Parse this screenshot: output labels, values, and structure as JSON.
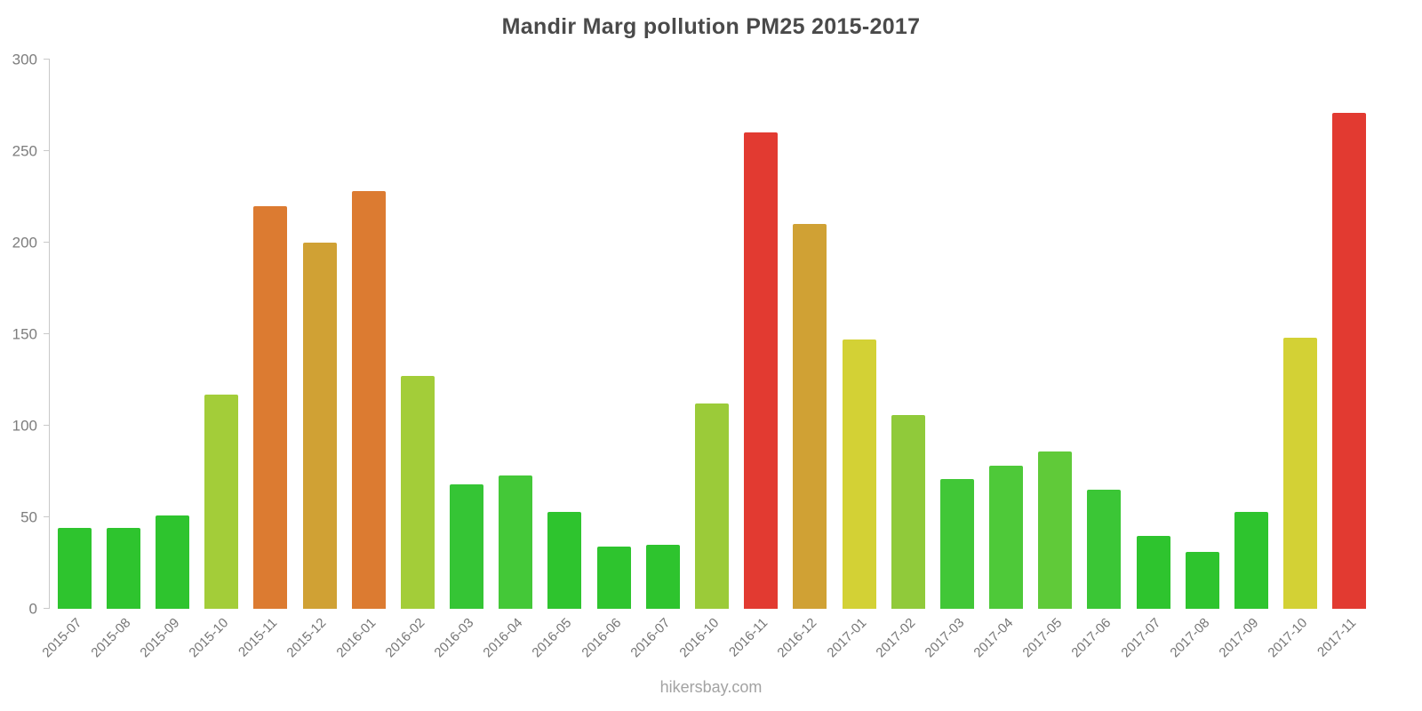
{
  "title": "Mandir Marg pollution PM25 2015-2017",
  "footer": "hikersbay.com",
  "chart_data": {
    "type": "bar",
    "title": "Mandir Marg pollution PM25 2015-2017",
    "xlabel": "",
    "ylabel": "",
    "ylim": [
      0,
      300
    ],
    "yticks": [
      0,
      50,
      100,
      150,
      200,
      250,
      300
    ],
    "grid": false,
    "legend": "none",
    "categories": [
      "2015-07",
      "2015-08",
      "2015-09",
      "2015-10",
      "2015-11",
      "2015-12",
      "2016-01",
      "2016-02",
      "2016-03",
      "2016-04",
      "2016-05",
      "2016-06",
      "2016-07",
      "2016-10",
      "2016-11",
      "2016-12",
      "2017-01",
      "2017-02",
      "2017-03",
      "2017-04",
      "2017-05",
      "2017-06",
      "2017-07",
      "2017-08",
      "2017-09",
      "2017-10",
      "2017-11"
    ],
    "values": [
      44,
      44,
      51,
      117,
      220,
      200,
      228,
      127,
      68,
      73,
      53,
      34,
      35,
      112,
      260,
      210,
      147,
      106,
      71,
      78,
      86,
      65,
      40,
      31,
      53,
      148,
      271
    ],
    "colors": [
      "#2ec42e",
      "#2ec42e",
      "#2ec42e",
      "#a3cd39",
      "#dc7b31",
      "#d0a134",
      "#dc7b31",
      "#a3cd39",
      "#35c535",
      "#44c838",
      "#2ec42e",
      "#2ec42e",
      "#2ec42e",
      "#9bcb39",
      "#e23a31",
      "#d0a134",
      "#d3d135",
      "#90ca3a",
      "#41c737",
      "#4ec939",
      "#60ca39",
      "#3bc636",
      "#2ec42e",
      "#2ec42e",
      "#2ec42e",
      "#d3d135",
      "#e23a31"
    ],
    "palette_legend": {
      "green_low": "#2ec42e",
      "yellow_green_mid": "#a3cd39",
      "yellow_high": "#d3d135",
      "ochre_very_high": "#d0a134",
      "orange_severe": "#dc7b31",
      "red_extreme": "#e23a31"
    }
  }
}
